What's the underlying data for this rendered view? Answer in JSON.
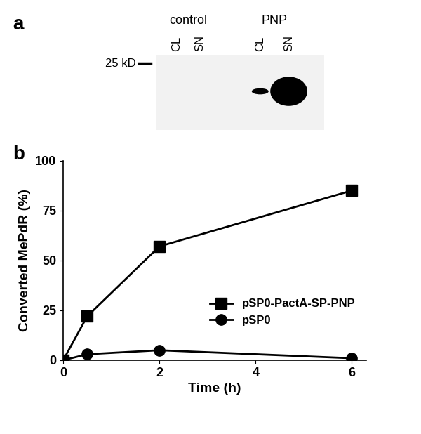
{
  "panel_a": {
    "label": "a",
    "marker_label": "25 kD",
    "groups": [
      {
        "name": "control",
        "lanes": [
          "CL",
          "SN"
        ]
      },
      {
        "name": "PNP",
        "lanes": [
          "CL",
          "SN"
        ]
      }
    ]
  },
  "chart_data": {
    "panel_label": "b",
    "type": "line",
    "x_label": "Time (h)",
    "y_label": "Converted MePdR (%)",
    "x": [
      0,
      0.5,
      2,
      6
    ],
    "series": [
      {
        "name": "pSP0-PactA-SP-PNP",
        "color": "#000000",
        "marker": "square",
        "line_style": "solid",
        "values": [
          0,
          22,
          57,
          85
        ]
      },
      {
        "name": "pSP0",
        "color": "#000000",
        "marker": "circle",
        "line_style": "solid",
        "values": [
          0,
          3,
          5,
          1
        ]
      }
    ],
    "xlim": [
      0,
      6.3
    ],
    "xticks": [
      0,
      2,
      4,
      6
    ],
    "ylim": [
      0,
      100
    ],
    "yticks": [
      0,
      25,
      50,
      75,
      100
    ],
    "grid": false,
    "legend": "lower right"
  }
}
